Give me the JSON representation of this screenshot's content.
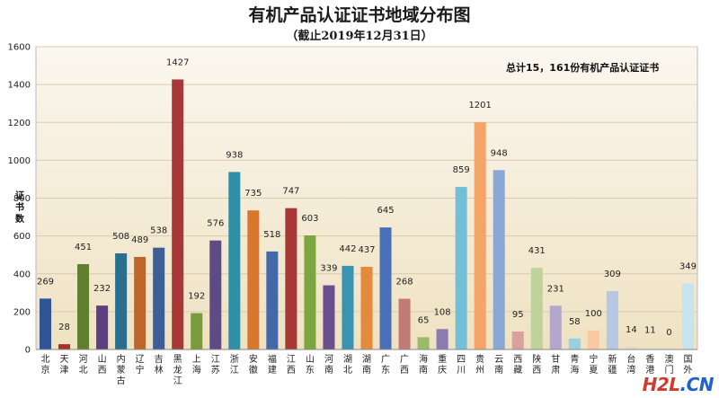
{
  "chart_data": {
    "type": "bar",
    "title": "有机产品认证证书地域分布图",
    "subtitle": "（截止2019年12月31日）",
    "ylabel": "证书数",
    "annotation": "总计15，161份有机产品认证证书",
    "ylim": [
      0,
      1600
    ],
    "yticks": [
      "0",
      "200",
      "400",
      "600",
      "800",
      "1000",
      "1200",
      "1400",
      "1600"
    ],
    "grid": true,
    "categories": [
      "北京",
      "天津",
      "河北",
      "山西",
      "内蒙古",
      "辽宁",
      "吉林",
      "黑龙江",
      "上海",
      "江苏",
      "浙江",
      "安徽",
      "福建",
      "江西",
      "山东",
      "河南",
      "湖北",
      "湖南",
      "广东",
      "广西",
      "海南",
      "重庆",
      "四川",
      "贵州",
      "云南",
      "西藏",
      "陕西",
      "甘肃",
      "青海",
      "宁夏",
      "新疆",
      "台湾",
      "香港",
      "澳门",
      "国外"
    ],
    "values": [
      269,
      28,
      451,
      232,
      508,
      489,
      538,
      1427,
      192,
      576,
      938,
      735,
      518,
      747,
      603,
      339,
      442,
      437,
      645,
      268,
      65,
      108,
      859,
      1201,
      948,
      95,
      431,
      231,
      58,
      100,
      309,
      14,
      11,
      0,
      349
    ],
    "colors": [
      "#2f5597",
      "#a93226",
      "#5f7f2f",
      "#5b3f80",
      "#2a6f8f",
      "#c0652a",
      "#3e5f96",
      "#a83838",
      "#7a9a40",
      "#5e4a85",
      "#2f8fa5",
      "#d9782d",
      "#4468a8",
      "#a83838",
      "#7ea640",
      "#6a4f8e",
      "#3a93b0",
      "#e38a3c",
      "#4a70b8",
      "#c27a76",
      "#9bbb6a",
      "#8b7bb0",
      "#73bfd8",
      "#f5a468",
      "#89a8d6",
      "#dba19c",
      "#bdd39a",
      "#b5a7cc",
      "#96d0e2",
      "#f8c9a4",
      "#b8c8e4",
      "#ead2cf",
      "#dde9c9",
      "#d4cde3",
      "#c6e4ef"
    ],
    "plot_background": "#f6eedb"
  },
  "watermark": {
    "part1": "H2L",
    "part2": ".CN"
  }
}
